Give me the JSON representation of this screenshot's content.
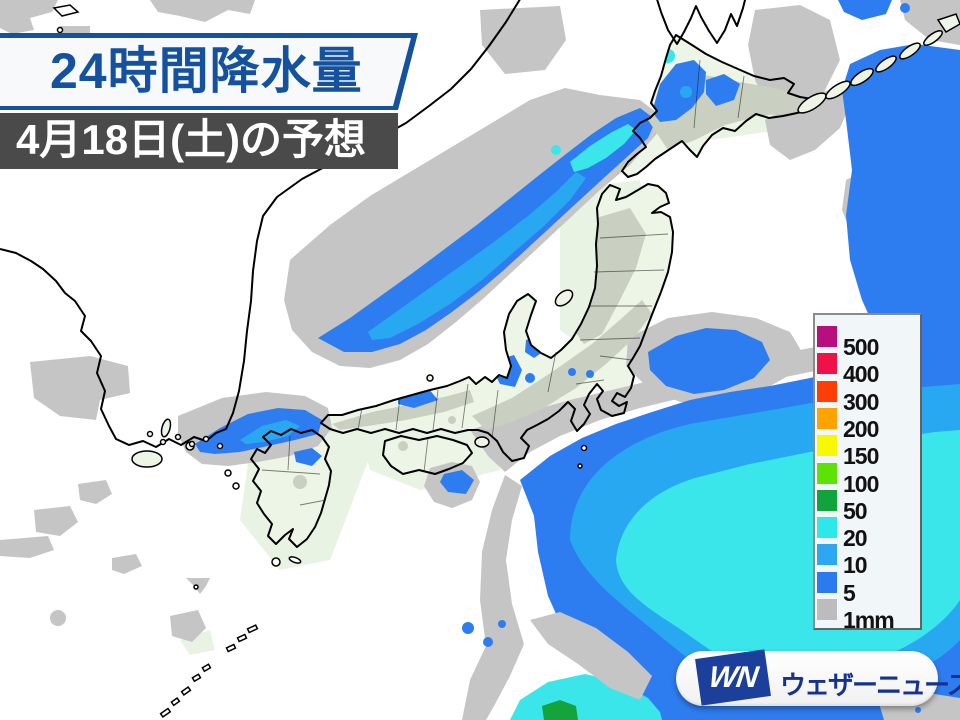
{
  "header": {
    "title": "24時間降水量",
    "subtitle": "4月18日(土)の予想"
  },
  "legend": {
    "items": [
      {
        "label": "500",
        "color": "#b70f7e"
      },
      {
        "label": "400",
        "color": "#ee1248"
      },
      {
        "label": "300",
        "color": "#fb3f07"
      },
      {
        "label": "200",
        "color": "#ffa303"
      },
      {
        "label": "150",
        "color": "#f7f900"
      },
      {
        "label": "100",
        "color": "#5ce305"
      },
      {
        "label": "50",
        "color": "#12a43c"
      },
      {
        "label": "20",
        "color": "#2ee7e9"
      },
      {
        "label": "10",
        "color": "#2ca7f0"
      },
      {
        "label": "5",
        "color": "#2b7af0"
      },
      {
        "label": "1mm",
        "color": "#bcbcbc"
      }
    ]
  },
  "logo": {
    "mark": "WN",
    "brand": "ウェザーニュース"
  },
  "colors": {
    "accent_navy": "#14519f",
    "subtitle_bg": "#4a4a4a",
    "sea": "#ffffff",
    "land_japan": "#edf5e6",
    "precip_gray_sea": "#c5c5c5",
    "precip_gray_land": "#c9d0c1",
    "precip_blue_5": "#2e7df0",
    "precip_lightblue_10": "#29a8f2",
    "precip_cyan_20": "#3be6ea",
    "precip_green_50": "#13a53c"
  }
}
